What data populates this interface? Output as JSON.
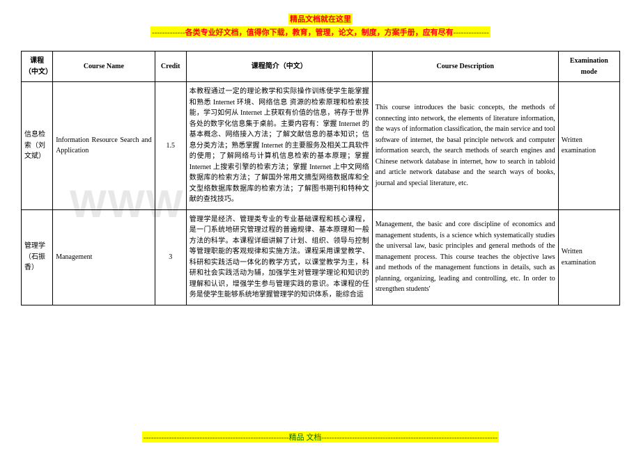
{
  "header": {
    "line1": "精品文档就在这里",
    "line2": "-------------各类专业好文档，值得你下载，教育，管理，论文，制度，方案手册，应有尽有--------------"
  },
  "watermark": "WWW",
  "table": {
    "headers": {
      "course_cn": "课程（中文）",
      "course_name": "Course Name",
      "credit": "Credit",
      "desc_cn": "课程简介（中文）",
      "desc_en": "Course Description",
      "exam": "Examination mode"
    },
    "rows": [
      {
        "course_cn": "信息检索（刘文斌）",
        "course_name": "Information Resource Search and Application",
        "credit": "1.5",
        "desc_cn": "本教程通过一定的理论教学和实际操作训练使学生能掌握和熟悉 Internet 环境、网络信息 资源的检索原理和检索技能，学习如何从 Internet 上获取有价值的信息，将存于世界各处的数字化信息集于桌前。主要内容有：掌握 Internet 的基本概念、网络接入方法；了解文献信息的基本知识；信息分类方法；熟悉掌握 Internet 的主要服务及相关工具软件的使用；了解网络与计算机信息检索的基本原理；掌握 Internet 上搜索引擎的检索方法；掌握 Internet 上中文网络数据库的检索方法；了解国外常用文摘型网络数据库和全文型络数据库数据库的检索方法；了解图书期刊和特种文献的查找技巧。",
        "desc_en": "This course introduces the basic concepts, the methods of connecting into network, the elements of literature information, the ways of information classification, the main service and tool software of internet, the basal principle network and computer information search, the search methods of search engines and Chinese network database in internet, how to search in tabloid and article network database and the search ways of books, journal and special literature, etc.",
        "exam": "Written examination"
      },
      {
        "course_cn": "管理学（石振香）",
        "course_name": "Management",
        "credit": "3",
        "desc_cn": "管理学是经济、管理类专业的专业基础课程和核心课程，是一门系统地研究管理过程的普遍规律、基本原理和一般方法的科学。本课程详细讲解了计划、组织、领导与控制等管理职能的客观规律和实施方法。课程采用课堂教学、科研和实践活动一体化的教学方式，以课堂教学为主，科研和社会实践活动为辅，加强学生对管理学理论和知识的理解和认识，增强学生参与管理实践的意识。本课程的任务是使学生能够系统地掌握管理学的知识体系，能综合运",
        "desc_en": "Management, the basic and core discipline of economics and management students, is a science which systematically studies the universal law, basic principles and general methods of the management process. This course teaches the objective laws and methods of the management functions in details, such as planning, organizing, leading and controlling, etc. In order to strengthen students'",
        "exam": "Written examination"
      }
    ]
  },
  "footer": {
    "text": "---------------------------------------------------------精品  文档---------------------------------------------------------------------"
  }
}
